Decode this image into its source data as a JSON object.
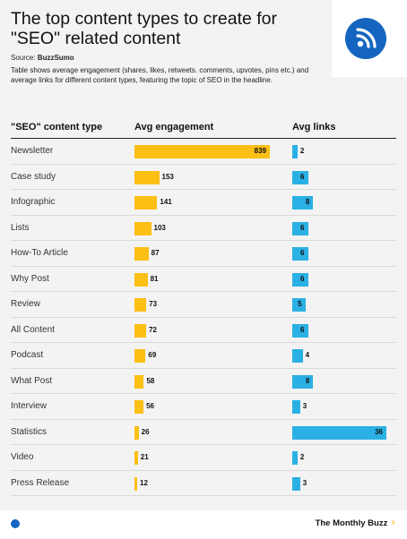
{
  "title": "The top content types to create for \"SEO\" related content",
  "source_label": "Source: ",
  "source_name": "BuzzSumo",
  "description": "Table shows average engagement (shares, likes, retweets. comments, upvotes, pins etc.) and average links for different content types, featuring the topic of SEO in the headline.",
  "footer": {
    "brand": "The Monthly Buzz",
    "bolt": "⚡"
  },
  "colors": {
    "engagement": "#fcbf14",
    "links": "#2ab0e4",
    "logo": "#1565c0"
  },
  "chart_data": {
    "type": "table",
    "columns": [
      "\"SEO\" content type",
      "Avg engagement",
      "Avg links"
    ],
    "categories": [
      "Newsletter",
      "Case study",
      "Infographic",
      "Lists",
      "How-To Article",
      "Why Post",
      "Review",
      "All Content",
      "Podcast",
      "What Post",
      "Interview",
      "Statistics",
      "Video",
      "Press Release"
    ],
    "series": [
      {
        "name": "Avg engagement",
        "values": [
          839,
          153,
          141,
          103,
          87,
          81,
          73,
          72,
          69,
          58,
          56,
          26,
          21,
          12
        ]
      },
      {
        "name": "Avg links",
        "values": [
          2,
          6,
          8,
          6,
          6,
          6,
          5,
          6,
          4,
          8,
          3,
          36,
          2,
          3
        ]
      }
    ]
  }
}
